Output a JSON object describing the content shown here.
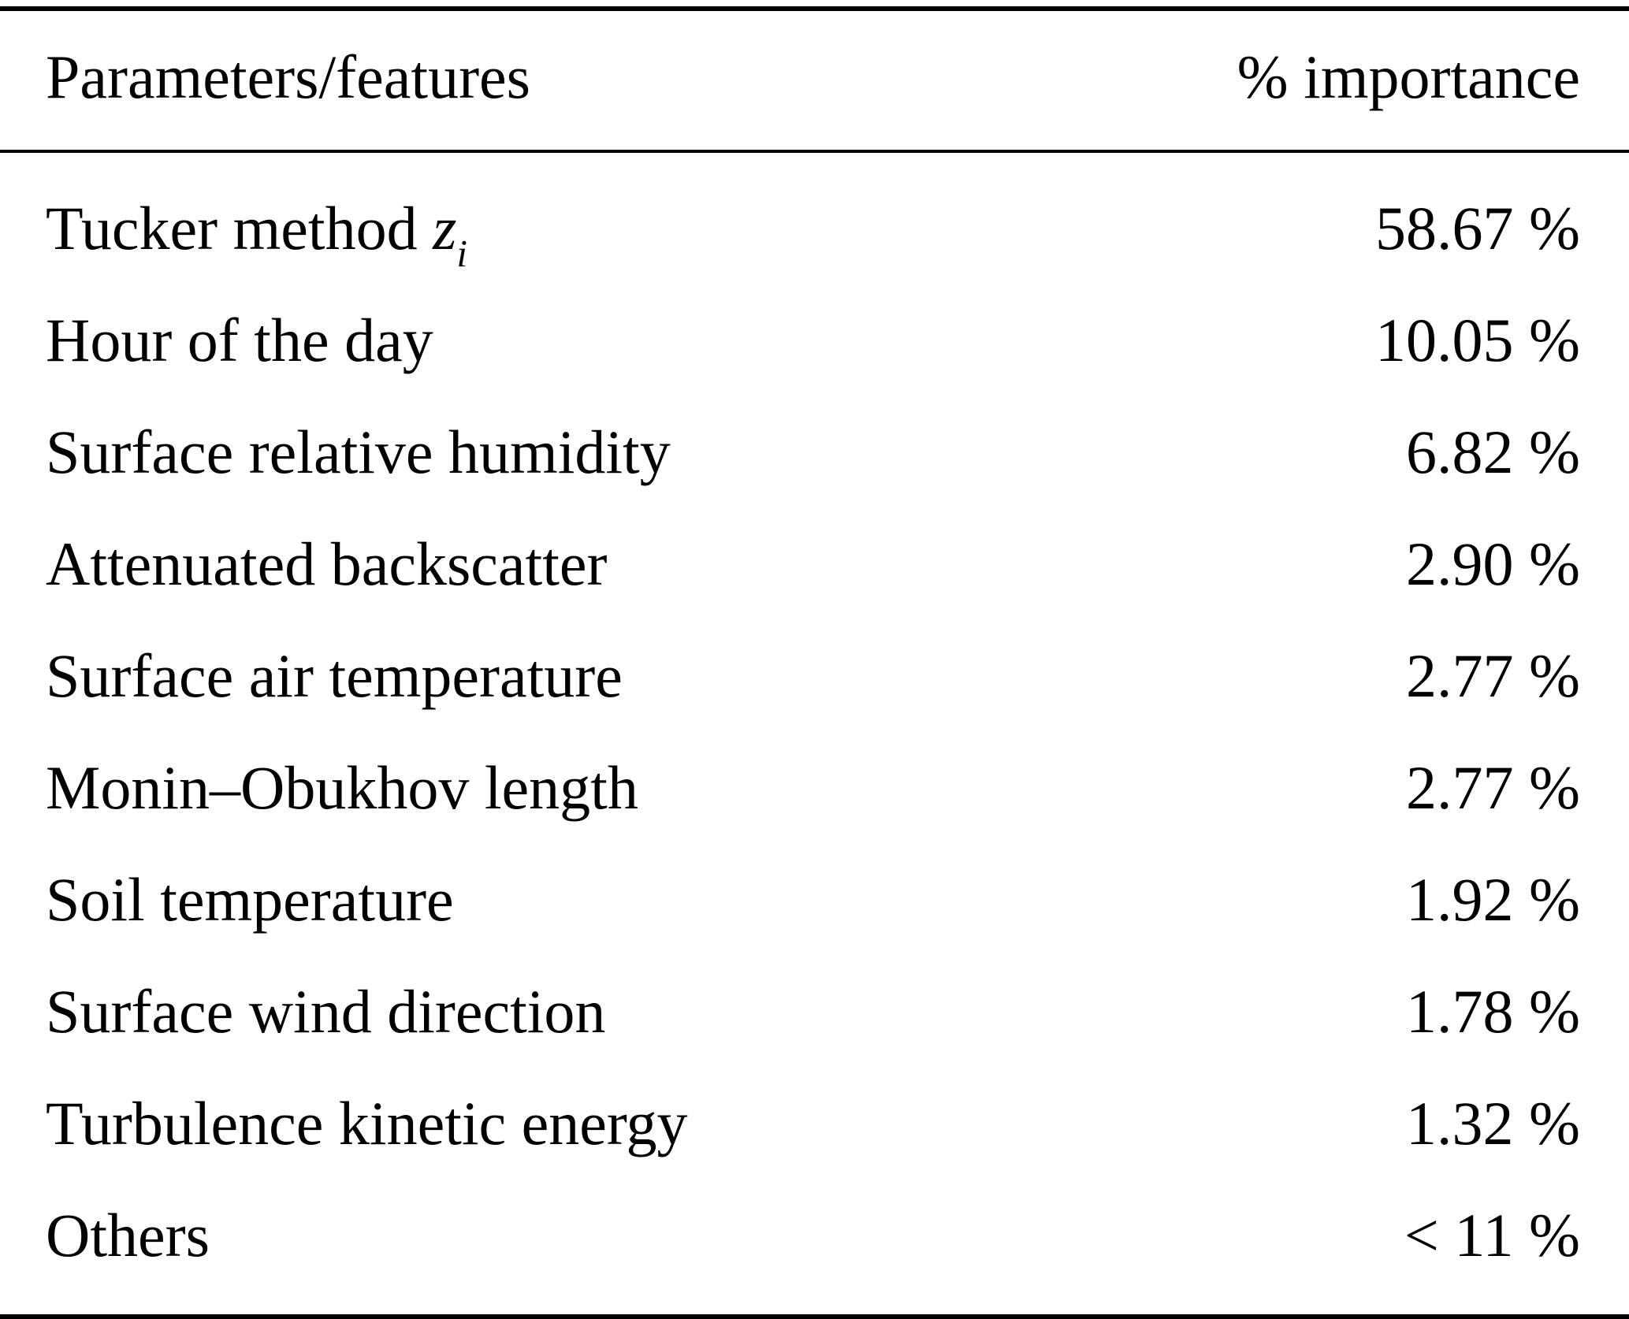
{
  "table": {
    "headers": [
      "Parameters/features",
      "% importance"
    ],
    "rows": [
      {
        "feature": "Tucker method ",
        "math": {
          "var": "z",
          "sub": "i"
        },
        "value": "58.67 %"
      },
      {
        "feature": "Hour of the day",
        "value": "10.05 %"
      },
      {
        "feature": "Surface relative humidity",
        "value": "6.82 %"
      },
      {
        "feature": "Attenuated backscatter",
        "value": "2.90 %"
      },
      {
        "feature": "Surface air temperature",
        "value": "2.77 %"
      },
      {
        "feature": "Monin–Obukhov length",
        "value": "2.77 %"
      },
      {
        "feature": "Soil temperature",
        "value": "1.92 %"
      },
      {
        "feature": "Surface wind direction",
        "value": "1.78 %"
      },
      {
        "feature": "Turbulence kinetic energy",
        "value": "1.32 %"
      },
      {
        "feature": "Others",
        "value": "< 11 %"
      }
    ]
  },
  "chart_data": {
    "type": "table",
    "title": "",
    "columns": [
      "Parameters/features",
      "% importance"
    ],
    "rows": [
      [
        "Tucker method z_i",
        "58.67 %"
      ],
      [
        "Hour of the day",
        "10.05 %"
      ],
      [
        "Surface relative humidity",
        "6.82 %"
      ],
      [
        "Attenuated backscatter",
        "2.90 %"
      ],
      [
        "Surface air temperature",
        "2.77 %"
      ],
      [
        "Monin–Obukhov length",
        "2.77 %"
      ],
      [
        "Soil temperature",
        "1.92 %"
      ],
      [
        "Surface wind direction",
        "1.78 %"
      ],
      [
        "Turbulence kinetic energy",
        "1.32 %"
      ],
      [
        "Others",
        "< 11 %"
      ]
    ]
  }
}
